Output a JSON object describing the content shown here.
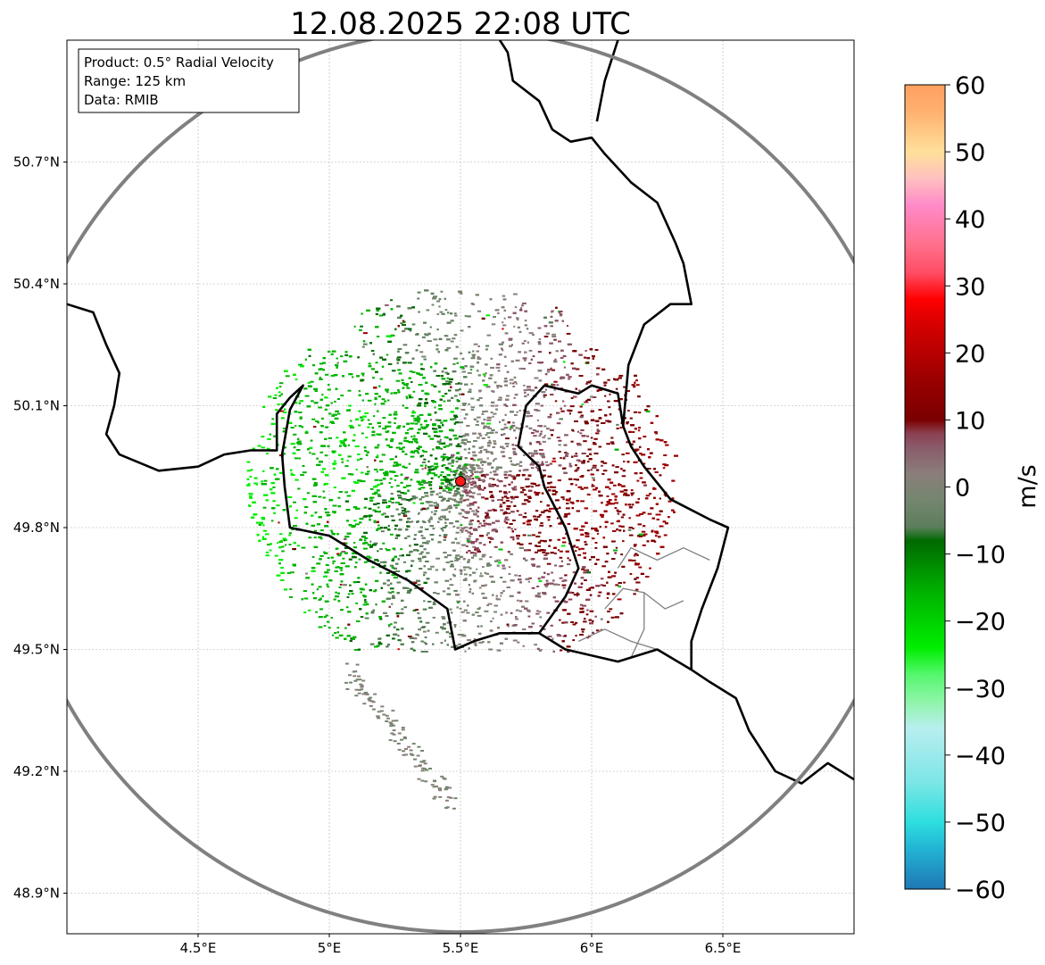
{
  "title": "12.08.2025 22:08 UTC",
  "info_box": {
    "lines": [
      "Product: 0.5° Radial Velocity",
      "Range: 125 km",
      "Data: RMIB"
    ]
  },
  "axes": {
    "lon_min": 4.0,
    "lon_max": 7.0,
    "lat_min": 48.8,
    "lat_max": 51.0,
    "x_ticks": [
      {
        "value": 4.5,
        "label": "4.5°E"
      },
      {
        "value": 5.0,
        "label": "5°E"
      },
      {
        "value": 5.5,
        "label": "5.5°E"
      },
      {
        "value": 6.0,
        "label": "6°E"
      },
      {
        "value": 6.5,
        "label": "6.5°E"
      }
    ],
    "y_ticks": [
      {
        "value": 50.7,
        "label": "50.7°N"
      },
      {
        "value": 50.4,
        "label": "50.4°N"
      },
      {
        "value": 50.1,
        "label": "50.1°N"
      },
      {
        "value": 49.8,
        "label": "49.8°N"
      },
      {
        "value": 49.5,
        "label": "49.5°N"
      },
      {
        "value": 49.2,
        "label": "49.2°N"
      },
      {
        "value": 48.9,
        "label": "48.9°N"
      }
    ],
    "grid": "dashed"
  },
  "radar": {
    "lon": 5.5,
    "lat": 49.914,
    "range_label": "125 km",
    "site_color": "#ff1a1a"
  },
  "colorbar": {
    "unit": "m/s",
    "vmin": -60,
    "vmax": 60,
    "ticks": [
      {
        "value": 60,
        "label": "60"
      },
      {
        "value": 50,
        "label": "50"
      },
      {
        "value": 40,
        "label": "40"
      },
      {
        "value": 30,
        "label": "30"
      },
      {
        "value": 20,
        "label": "20"
      },
      {
        "value": 10,
        "label": "10"
      },
      {
        "value": 0,
        "label": "0"
      },
      {
        "value": -10,
        "label": "−10"
      },
      {
        "value": -20,
        "label": "−20"
      },
      {
        "value": -30,
        "label": "−30"
      },
      {
        "value": -40,
        "label": "−40"
      },
      {
        "value": -50,
        "label": "−50"
      },
      {
        "value": -60,
        "label": "−60"
      }
    ],
    "stops": [
      {
        "value": -60,
        "color": "#1f77b4"
      },
      {
        "value": -54,
        "color": "#22b4d4"
      },
      {
        "value": -50,
        "color": "#2edede"
      },
      {
        "value": -44,
        "color": "#7de6e6"
      },
      {
        "value": -36,
        "color": "#b8eef0"
      },
      {
        "value": -32,
        "color": "#8ef5a8"
      },
      {
        "value": -28,
        "color": "#55f76e"
      },
      {
        "value": -24,
        "color": "#00ee00"
      },
      {
        "value": -16,
        "color": "#00b400"
      },
      {
        "value": -8,
        "color": "#006a00"
      },
      {
        "value": -6,
        "color": "#5b7e5b"
      },
      {
        "value": -2,
        "color": "#74866f"
      },
      {
        "value": 2,
        "color": "#8a7e7a"
      },
      {
        "value": 6,
        "color": "#8a5a6a"
      },
      {
        "value": 8,
        "color": "#8b4050"
      },
      {
        "value": 10,
        "color": "#7a0000"
      },
      {
        "value": 16,
        "color": "#9a0000"
      },
      {
        "value": 24,
        "color": "#d40000"
      },
      {
        "value": 28,
        "color": "#ff0000"
      },
      {
        "value": 32,
        "color": "#ff4d64"
      },
      {
        "value": 36,
        "color": "#ff6f8a"
      },
      {
        "value": 42,
        "color": "#ff8ac8"
      },
      {
        "value": 46,
        "color": "#ffc0c0"
      },
      {
        "value": 50,
        "color": "#ffe09a"
      },
      {
        "value": 56,
        "color": "#ffb070"
      },
      {
        "value": 60,
        "color": "#ffa060"
      }
    ]
  },
  "colors": {
    "border": "#000000",
    "subdivision": "#808080",
    "range_ring": "#808080",
    "grid": "#b0b0b0"
  },
  "boundaries": {
    "national": [
      [
        [
          4.0,
          50.35
        ],
        [
          4.1,
          50.33
        ],
        [
          4.15,
          50.25
        ],
        [
          4.2,
          50.18
        ],
        [
          4.18,
          50.1
        ],
        [
          4.15,
          50.03
        ],
        [
          4.2,
          49.98
        ],
        [
          4.35,
          49.94
        ],
        [
          4.5,
          49.95
        ],
        [
          4.6,
          49.98
        ],
        [
          4.7,
          49.99
        ],
        [
          4.8,
          49.99
        ],
        [
          4.8,
          50.08
        ],
        [
          4.85,
          50.12
        ],
        [
          4.9,
          50.15
        ],
        [
          4.85,
          50.09
        ],
        [
          4.82,
          49.98
        ],
        [
          4.83,
          49.9
        ],
        [
          4.85,
          49.8
        ],
        [
          5.0,
          49.78
        ],
        [
          5.15,
          49.72
        ],
        [
          5.3,
          49.67
        ],
        [
          5.45,
          49.6
        ],
        [
          5.48,
          49.5
        ],
        [
          5.55,
          49.52
        ],
        [
          5.65,
          49.54
        ],
        [
          5.8,
          49.54
        ],
        [
          5.9,
          49.5
        ],
        [
          6.1,
          49.47
        ],
        [
          6.25,
          49.5
        ],
        [
          6.38,
          49.45
        ],
        [
          6.45,
          49.42
        ],
        [
          6.55,
          49.38
        ],
        [
          6.6,
          49.3
        ],
        [
          6.7,
          49.2
        ],
        [
          6.8,
          49.17
        ],
        [
          6.9,
          49.22
        ],
        [
          7.0,
          49.18
        ]
      ],
      [
        [
          5.8,
          49.54
        ],
        [
          5.9,
          49.63
        ],
        [
          5.95,
          49.7
        ],
        [
          5.9,
          49.8
        ],
        [
          5.82,
          49.9
        ],
        [
          5.8,
          49.95
        ],
        [
          5.72,
          50.0
        ],
        [
          5.75,
          50.1
        ],
        [
          5.82,
          50.15
        ],
        [
          5.95,
          50.13
        ],
        [
          6.0,
          50.15
        ],
        [
          6.1,
          50.13
        ],
        [
          6.12,
          50.05
        ],
        [
          6.15,
          50.0
        ],
        [
          6.2,
          49.95
        ],
        [
          6.3,
          49.87
        ],
        [
          6.45,
          49.82
        ],
        [
          6.52,
          49.8
        ],
        [
          6.48,
          49.7
        ],
        [
          6.42,
          49.6
        ],
        [
          6.38,
          49.52
        ],
        [
          6.38,
          49.45
        ]
      ],
      [
        [
          6.12,
          50.05
        ],
        [
          6.14,
          50.2
        ],
        [
          6.2,
          50.3
        ],
        [
          6.3,
          50.35
        ],
        [
          6.38,
          50.35
        ],
        [
          6.35,
          50.45
        ],
        [
          6.32,
          50.5
        ],
        [
          6.25,
          50.6
        ],
        [
          6.15,
          50.65
        ],
        [
          6.05,
          50.72
        ],
        [
          6.0,
          50.76
        ],
        [
          5.92,
          50.75
        ],
        [
          5.85,
          50.78
        ],
        [
          5.8,
          50.85
        ],
        [
          5.7,
          50.9
        ],
        [
          5.68,
          50.97
        ],
        [
          5.65,
          51.0
        ]
      ],
      [
        [
          6.1,
          51.0
        ],
        [
          6.05,
          50.9
        ],
        [
          6.02,
          50.8
        ]
      ]
    ],
    "subdivision": [
      [
        [
          6.1,
          49.7
        ],
        [
          6.15,
          49.75
        ],
        [
          6.25,
          49.72
        ],
        [
          6.35,
          49.75
        ],
        [
          6.45,
          49.72
        ]
      ],
      [
        [
          6.05,
          49.6
        ],
        [
          6.12,
          49.65
        ],
        [
          6.2,
          49.64
        ],
        [
          6.28,
          49.6
        ],
        [
          6.35,
          49.62
        ]
      ],
      [
        [
          5.95,
          49.52
        ],
        [
          6.05,
          49.55
        ],
        [
          6.15,
          49.52
        ],
        [
          6.25,
          49.5
        ]
      ],
      [
        [
          6.2,
          49.64
        ],
        [
          6.2,
          49.55
        ],
        [
          6.15,
          49.48
        ]
      ]
    ]
  }
}
